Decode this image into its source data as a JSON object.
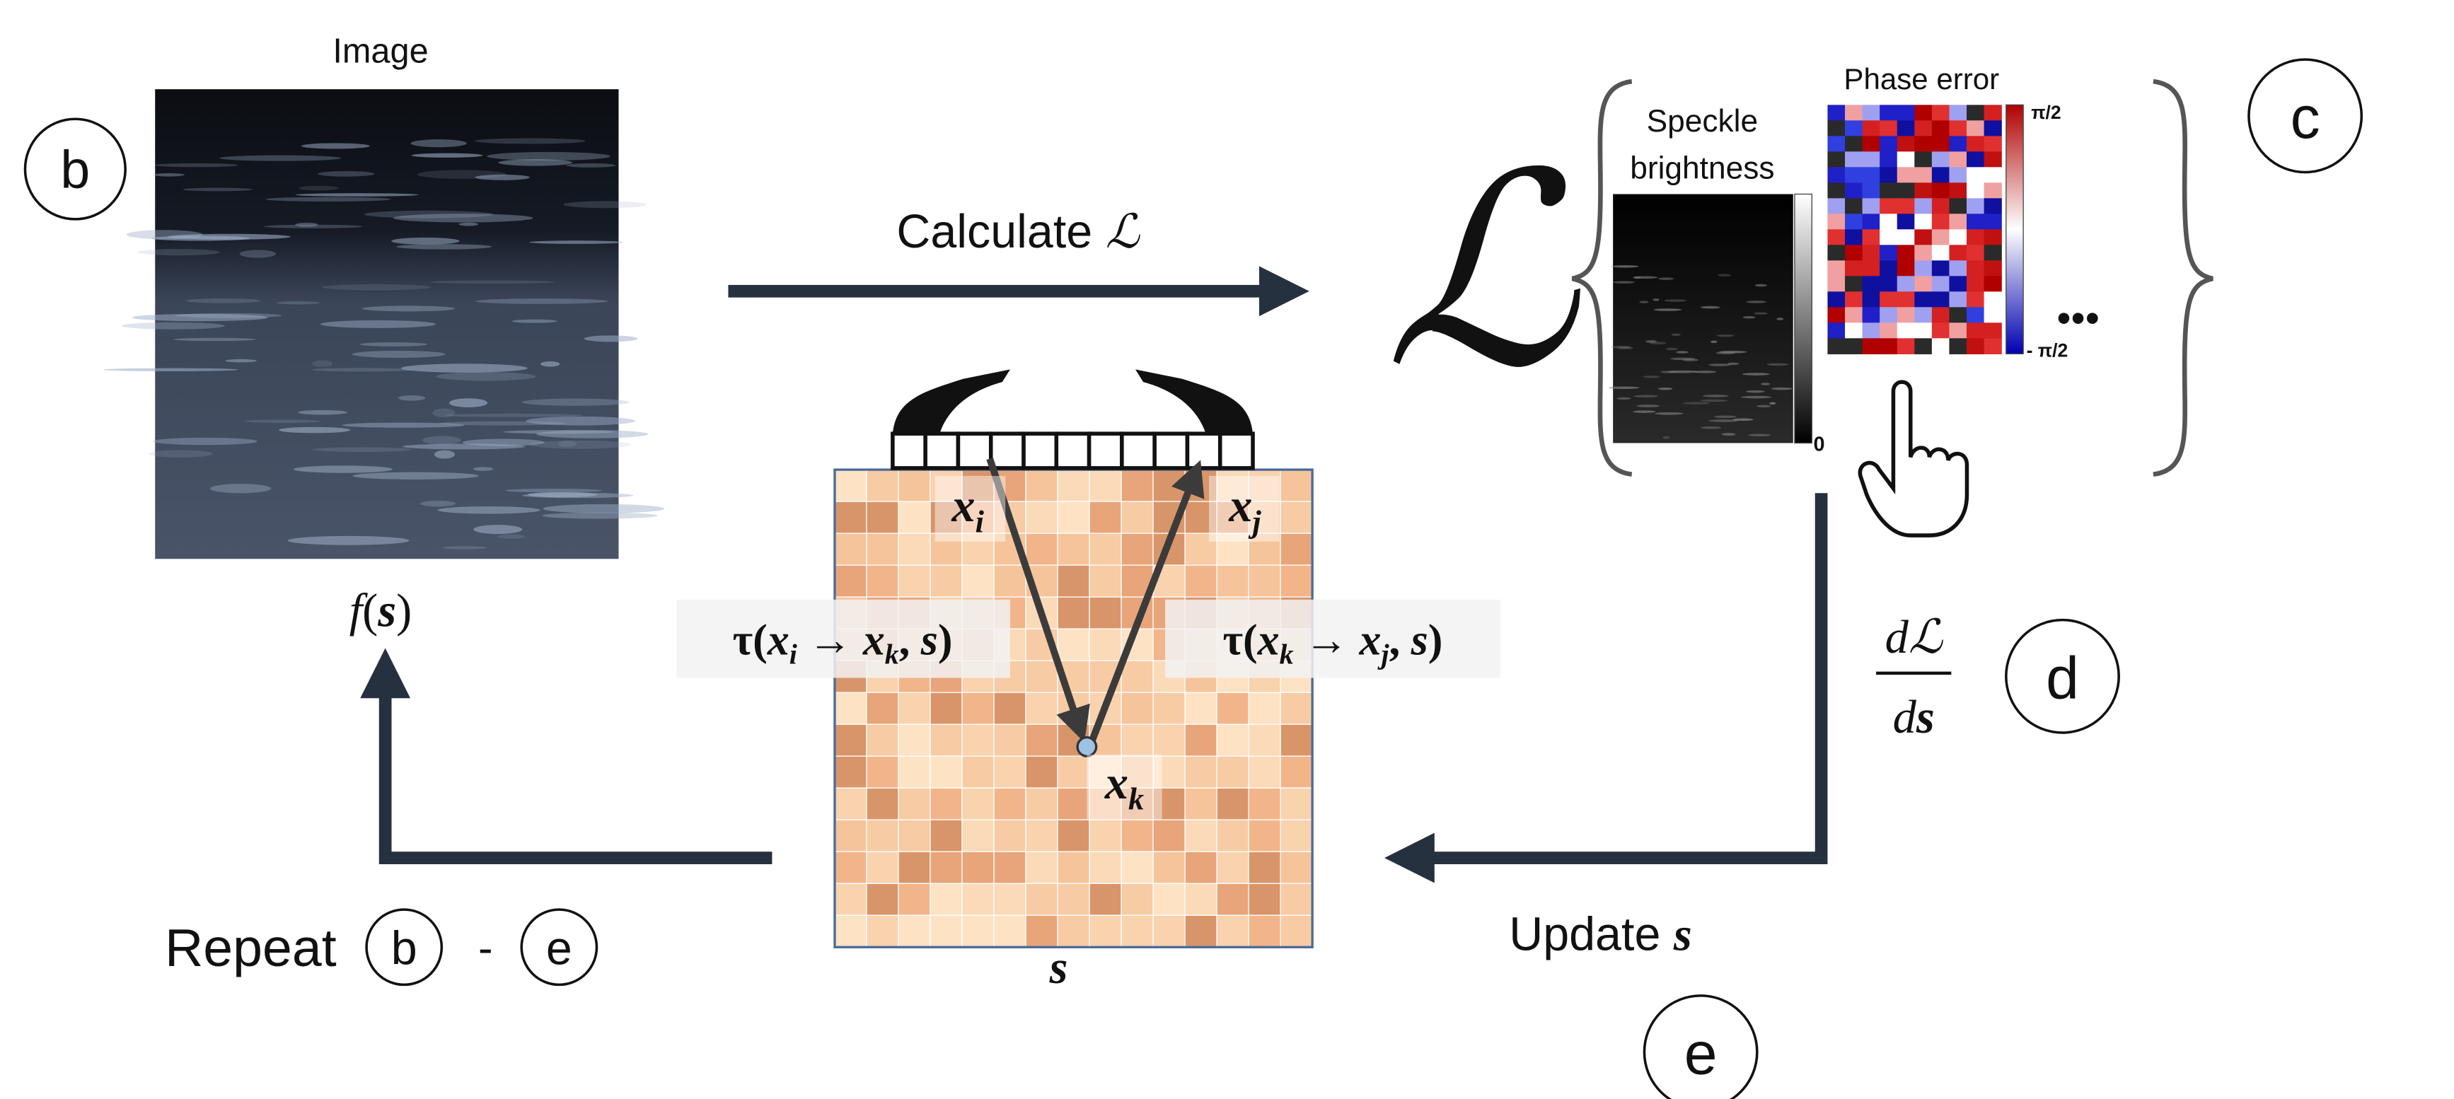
{
  "image_panel": {
    "title": "Image",
    "caption": [
      "f",
      "(",
      "s",
      ")"
    ],
    "badge": "b"
  },
  "calculate": {
    "label": "Calculate",
    "symbol": "ℒ"
  },
  "loss": {
    "symbol": "ℒ",
    "speckle_label": [
      "Speckle",
      "brightness"
    ],
    "speckle_scale_min": "0",
    "phase_label": "Phase error",
    "phase_scale_max": "π/2",
    "phase_scale_min": "- π/2",
    "more": "•••",
    "badge": "c"
  },
  "gradient": {
    "numerator": "dℒ",
    "denominator": [
      "d",
      "s"
    ],
    "badge": "d"
  },
  "update": {
    "label": "Update",
    "symbol": "s",
    "badge": "e"
  },
  "repeat": {
    "label": "Repeat",
    "from": "b",
    "separator": "-",
    "to": "e"
  },
  "model": {
    "x_i": [
      "x",
      "i"
    ],
    "x_j": [
      "x",
      "j"
    ],
    "x_k": [
      "x",
      "k"
    ],
    "tau_ik": [
      "τ(",
      "x",
      "i",
      " → ",
      "x",
      "k",
      ", ",
      "s",
      ")"
    ],
    "tau_kj": [
      "τ(",
      "x",
      "k",
      " → ",
      "x",
      "j",
      ", ",
      "s",
      ")"
    ],
    "map_label": "s"
  }
}
